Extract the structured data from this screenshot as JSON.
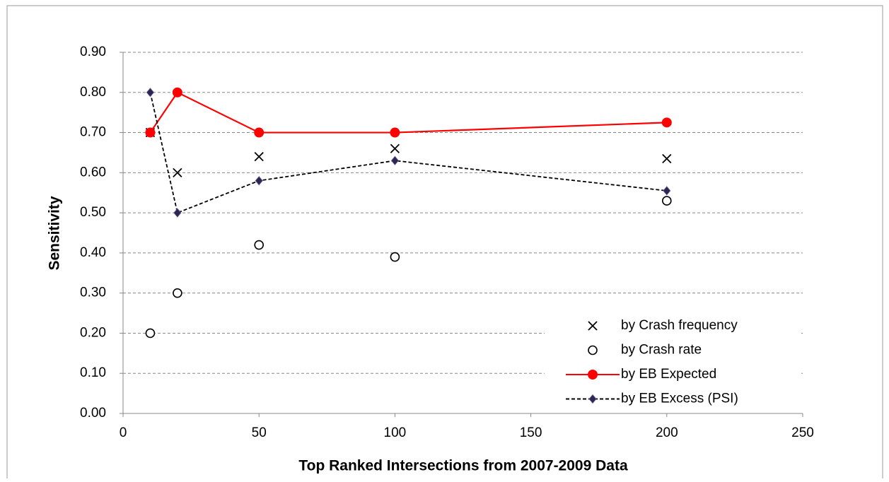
{
  "chart_data": {
    "type": "line",
    "xlabel": "Top Ranked Intersections from 2007-2009 Data",
    "ylabel": "Sensitivity",
    "x": [
      10,
      20,
      50,
      100,
      200
    ],
    "series": [
      {
        "name": "by Crash frequency",
        "color": "#000000",
        "marker": "x",
        "line": "none",
        "values": [
          0.7,
          0.6,
          0.64,
          0.66,
          0.635
        ]
      },
      {
        "name": "by Crash rate",
        "color": "#000000",
        "marker": "circle-open",
        "line": "none",
        "values": [
          0.2,
          0.3,
          0.42,
          0.39,
          0.53
        ]
      },
      {
        "name": "by EB Expected",
        "color": "#ff0000",
        "marker": "circle",
        "line": "solid",
        "values": [
          0.7,
          0.8,
          0.7,
          0.7,
          0.725
        ]
      },
      {
        "name": "by EB Excess (PSI)",
        "color": "#000000",
        "marker": "diamond",
        "line": "dashed",
        "values": [
          0.8,
          0.5,
          0.58,
          0.63,
          0.555
        ]
      }
    ],
    "xlim": [
      0,
      250
    ],
    "xticks": [
      0,
      50,
      100,
      150,
      200,
      250
    ],
    "ylim": [
      0,
      0.9
    ],
    "yticks": [
      {
        "value": 0,
        "label": "0.00"
      },
      {
        "value": 0.1,
        "label": "0.10"
      },
      {
        "value": 0.2,
        "label": "0.20"
      },
      {
        "value": 0.3,
        "label": "0.30"
      },
      {
        "value": 0.4,
        "label": "0.40"
      },
      {
        "value": 0.5,
        "label": "0.50"
      },
      {
        "value": 0.6,
        "label": "0.60"
      },
      {
        "value": 0.7,
        "label": "0.70"
      },
      {
        "value": 0.8,
        "label": "0.80"
      },
      {
        "value": 0.9,
        "label": "0.90"
      }
    ],
    "grid": true,
    "legend": "lower right"
  }
}
